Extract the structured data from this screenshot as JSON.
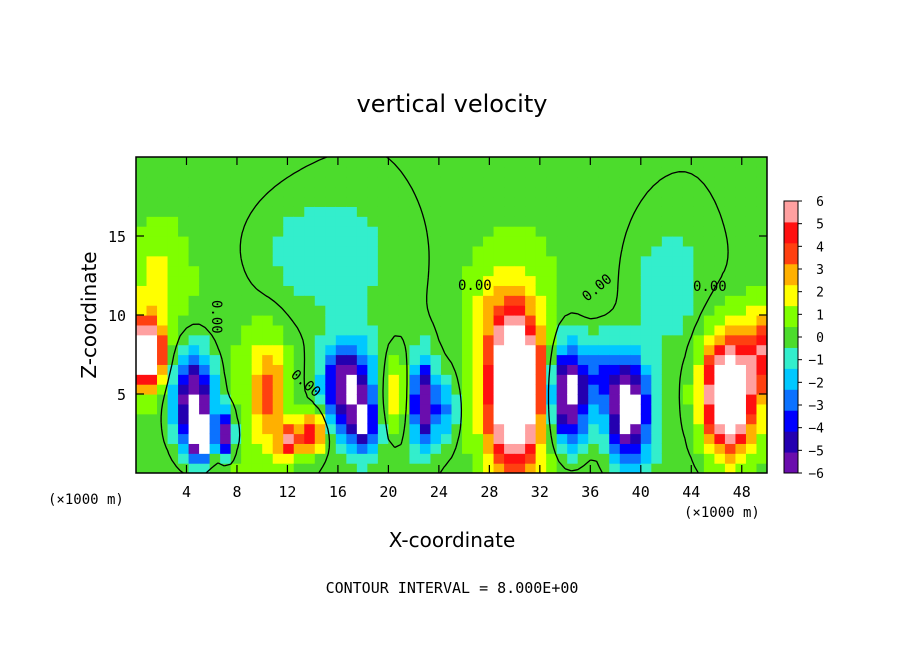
{
  "chart_data": {
    "type": "heatmap",
    "title": "vertical velocity",
    "xlabel": "X-coordinate",
    "ylabel": "Z-coordinate",
    "x_unit_left": "(×1000 m)",
    "x_unit_right": "(×1000 m)",
    "footer": "CONTOUR INTERVAL = 8.000E+00",
    "xlim": [
      0,
      50
    ],
    "ylim": [
      0,
      20
    ],
    "x_ticks": [
      4,
      8,
      12,
      16,
      20,
      24,
      28,
      32,
      36,
      40,
      44,
      48
    ],
    "y_ticks": [
      5,
      10,
      15
    ],
    "colorbar": {
      "range": [
        -6,
        6
      ],
      "ticks": [
        6,
        5,
        4,
        3,
        2,
        1,
        0,
        -1,
        -2,
        -3,
        -4,
        -5,
        -6
      ],
      "tick_labels": [
        "6",
        "5",
        "4",
        "3",
        "2",
        "1",
        "0",
        "−1",
        "−2",
        "−3",
        "−4",
        "−5",
        "−6"
      ],
      "colors": [
        "#6a0dad",
        "#2400b0",
        "#0000ff",
        "#0b72ff",
        "#00c8ff",
        "#33eecc",
        "#4cdc2c",
        "#7fff00",
        "#ffff00",
        "#ffb000",
        "#ff4010",
        "#ff1010",
        "#ffa0a0"
      ]
    },
    "contour_labels": [
      "0.00",
      "0.00",
      "0.00",
      "0.00",
      "0.00"
    ],
    "features": [
      {
        "x": 0.8,
        "z": 7.5,
        "w": 9.0,
        "sx": 1.3,
        "sz": 2.0
      },
      {
        "x": 4.6,
        "z": 4.5,
        "w": -7.5,
        "sx": 1.6,
        "sz": 3.0
      },
      {
        "x": 5.2,
        "z": 2.4,
        "w": -9.0,
        "sx": 0.8,
        "sz": 1.2
      },
      {
        "x": 7.2,
        "z": 2.5,
        "w": -7.0,
        "sx": 0.6,
        "sz": 1.3
      },
      {
        "x": 10.5,
        "z": 5.0,
        "w": 3.5,
        "sx": 1.4,
        "sz": 3.2
      },
      {
        "x": 12.2,
        "z": 2.0,
        "w": 5.0,
        "sx": 0.9,
        "sz": 1.0
      },
      {
        "x": 14.0,
        "z": 2.6,
        "w": 5.5,
        "sx": 0.9,
        "sz": 1.2
      },
      {
        "x": 16.8,
        "z": 5.5,
        "w": -7.0,
        "sx": 1.8,
        "sz": 2.5
      },
      {
        "x": 18.0,
        "z": 3.0,
        "w": -5.0,
        "sx": 1.0,
        "sz": 1.5
      },
      {
        "x": 20.5,
        "z": 5.0,
        "w": 2.5,
        "sx": 0.9,
        "sz": 2.2
      },
      {
        "x": 22.8,
        "z": 4.5,
        "w": -6.5,
        "sx": 0.9,
        "sz": 2.5
      },
      {
        "x": 24.5,
        "z": 4.0,
        "w": -2.5,
        "sx": 0.9,
        "sz": 2.0
      },
      {
        "x": 30.0,
        "z": 5.5,
        "w": 12.0,
        "sx": 2.0,
        "sz": 4.5
      },
      {
        "x": 34.3,
        "z": 5.0,
        "w": -8.0,
        "sx": 1.5,
        "sz": 3.0
      },
      {
        "x": 39.0,
        "z": 4.0,
        "w": -8.0,
        "sx": 1.6,
        "sz": 3.0
      },
      {
        "x": 37.0,
        "z": 6.5,
        "w": -3.0,
        "sx": 1.3,
        "sz": 2.0
      },
      {
        "x": 47.0,
        "z": 5.0,
        "w": 10.0,
        "sx": 2.0,
        "sz": 3.5
      },
      {
        "x": 49.5,
        "z": 8.0,
        "w": 4.0,
        "sx": 1.0,
        "sz": 2.5
      },
      {
        "x": 1.5,
        "z": 12.0,
        "w": 1.5,
        "sx": 2.0,
        "sz": 3.0
      },
      {
        "x": 14.0,
        "z": 14.0,
        "w": -1.0,
        "sx": 6.0,
        "sz": 4.0
      },
      {
        "x": 28.0,
        "z": 11.0,
        "w": 1.0,
        "sx": 2.0,
        "sz": 2.5
      },
      {
        "x": 42.0,
        "z": 12.0,
        "w": -0.8,
        "sx": 3.0,
        "sz": 4.0
      }
    ]
  }
}
